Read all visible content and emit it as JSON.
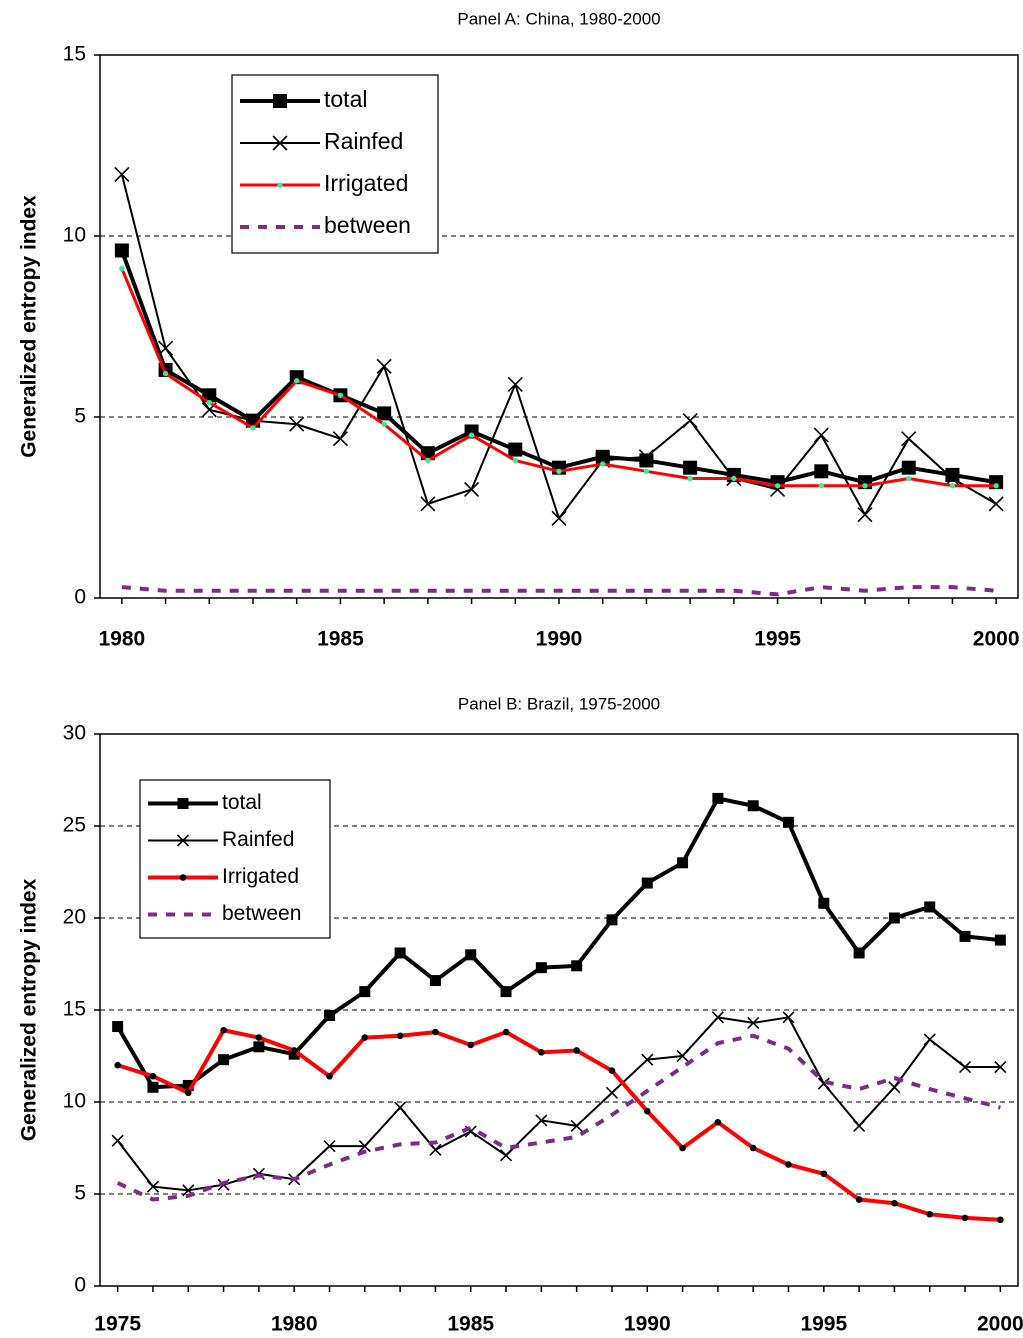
{
  "chart_data": [
    {
      "type": "line",
      "title": "Panel A: China, 1980-2000",
      "y_label": "Generalized entropy index",
      "x": [
        1980,
        1981,
        1982,
        1983,
        1984,
        1985,
        1986,
        1987,
        1988,
        1989,
        1990,
        1991,
        1992,
        1993,
        1994,
        1995,
        1996,
        1997,
        1998,
        1999,
        2000
      ],
      "xlim": [
        1979.5,
        2000.5
      ],
      "xticks": [
        1980,
        1985,
        1990,
        1995,
        2000
      ],
      "ylim": [
        0,
        15
      ],
      "yticks": [
        0,
        5,
        10,
        15
      ],
      "grid": true,
      "legend": "upper left",
      "series": [
        {
          "name": "total",
          "color": "#000000",
          "marker": "square",
          "line_width": 4,
          "values": [
            9.6,
            6.3,
            5.6,
            4.9,
            6.1,
            5.6,
            5.1,
            4.0,
            4.6,
            4.1,
            3.6,
            3.9,
            3.8,
            3.6,
            3.4,
            3.2,
            3.5,
            3.2,
            3.6,
            3.4,
            3.2
          ]
        },
        {
          "name": "Rainfed",
          "color": "#000000",
          "marker": "x",
          "line_width": 2,
          "values": [
            11.7,
            6.9,
            5.2,
            4.9,
            4.8,
            4.4,
            6.4,
            2.6,
            3.0,
            5.9,
            2.2,
            3.8,
            3.9,
            4.9,
            3.3,
            3.0,
            4.5,
            2.3,
            4.4,
            3.3,
            2.6
          ]
        },
        {
          "name": "Irrigated",
          "color": "#ff0000",
          "marker": "dot",
          "marker_color": "#33ee99",
          "line_width": 3,
          "values": [
            9.1,
            6.2,
            5.4,
            4.7,
            6.0,
            5.6,
            4.8,
            3.8,
            4.5,
            3.8,
            3.5,
            3.7,
            3.5,
            3.3,
            3.3,
            3.1,
            3.1,
            3.1,
            3.3,
            3.1,
            3.1
          ]
        },
        {
          "name": "between",
          "color": "#7f2a8a",
          "dashed": true,
          "line_width": 4,
          "values": [
            0.3,
            0.2,
            0.2,
            0.2,
            0.2,
            0.2,
            0.2,
            0.2,
            0.2,
            0.2,
            0.2,
            0.2,
            0.2,
            0.2,
            0.2,
            0.1,
            0.3,
            0.2,
            0.3,
            0.3,
            0.2
          ]
        }
      ]
    },
    {
      "type": "line",
      "title": "Panel B: Brazil, 1975-2000",
      "y_label": "Generalized entropy index",
      "x": [
        1975,
        1976,
        1977,
        1978,
        1979,
        1980,
        1981,
        1982,
        1983,
        1984,
        1985,
        1986,
        1987,
        1988,
        1989,
        1990,
        1991,
        1992,
        1993,
        1994,
        1995,
        1996,
        1997,
        1998,
        1999,
        2000
      ],
      "xlim": [
        1974.5,
        2000.5
      ],
      "xticks": [
        1975,
        1980,
        1985,
        1990,
        1995,
        2000
      ],
      "ylim": [
        0,
        30
      ],
      "yticks": [
        0,
        5,
        10,
        15,
        20,
        25,
        30
      ],
      "grid": true,
      "legend": "upper left",
      "series": [
        {
          "name": "total",
          "color": "#000000",
          "marker": "square",
          "line_width": 4,
          "values": [
            14.1,
            10.8,
            10.9,
            12.3,
            13.0,
            12.6,
            14.7,
            16.0,
            18.1,
            16.6,
            18.0,
            16.0,
            17.3,
            17.4,
            19.9,
            21.9,
            23.0,
            26.5,
            26.1,
            25.2,
            20.8,
            18.1,
            20.0,
            20.6,
            19.0,
            18.8
          ]
        },
        {
          "name": "Rainfed",
          "color": "#000000",
          "marker": "x",
          "line_width": 2,
          "values": [
            7.9,
            5.4,
            5.2,
            5.5,
            6.1,
            5.8,
            7.6,
            7.6,
            9.7,
            7.4,
            8.4,
            7.1,
            9.0,
            8.7,
            10.5,
            12.3,
            12.5,
            14.6,
            14.3,
            14.6,
            11.0,
            8.7,
            10.8,
            13.4,
            11.9,
            11.9
          ]
        },
        {
          "name": "Irrigated",
          "color": "#ff0000",
          "marker": "circle",
          "marker_color": "#000000",
          "line_width": 4,
          "values": [
            12.0,
            11.4,
            10.5,
            13.9,
            13.5,
            12.8,
            11.4,
            13.5,
            13.6,
            13.8,
            13.1,
            13.8,
            12.7,
            12.8,
            11.7,
            9.5,
            7.5,
            8.9,
            7.5,
            6.6,
            6.1,
            4.7,
            4.5,
            3.9,
            3.7,
            3.6
          ]
        },
        {
          "name": "between",
          "color": "#7f2a8a",
          "dashed": true,
          "line_width": 4,
          "values": [
            5.6,
            4.7,
            4.9,
            5.6,
            6.0,
            5.8,
            6.6,
            7.3,
            7.7,
            7.8,
            8.6,
            7.5,
            7.8,
            8.1,
            9.3,
            10.6,
            11.9,
            13.2,
            13.6,
            12.9,
            11.1,
            10.7,
            11.3,
            10.7,
            10.2,
            9.7
          ]
        }
      ]
    }
  ]
}
